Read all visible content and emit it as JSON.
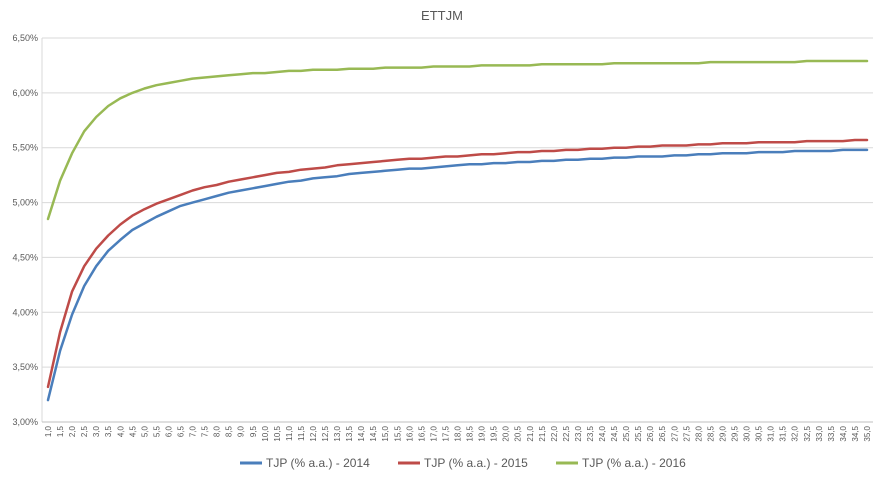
{
  "chart_data": {
    "type": "line",
    "title": "ETTJM",
    "xlabel": "",
    "ylabel": "",
    "ylim": [
      3.0,
      6.5
    ],
    "y_tick_values": [
      3.0,
      3.5,
      4.0,
      4.5,
      5.0,
      5.5,
      6.0,
      6.5
    ],
    "y_tick_labels": [
      "3,00%",
      "3,50%",
      "4,00%",
      "4,50%",
      "5,00%",
      "5,50%",
      "6,00%",
      "6,50%"
    ],
    "x": [
      "1,0",
      "1,5",
      "2,0",
      "2,5",
      "3,0",
      "3,5",
      "4,0",
      "4,5",
      "5,0",
      "5,5",
      "6,0",
      "6,5",
      "7,0",
      "7,5",
      "8,0",
      "8,5",
      "9,0",
      "9,5",
      "10,0",
      "10,5",
      "11,0",
      "11,5",
      "12,0",
      "12,5",
      "13,0",
      "13,5",
      "14,0",
      "14,5",
      "15,0",
      "15,5",
      "16,0",
      "16,5",
      "17,0",
      "17,5",
      "18,0",
      "18,5",
      "19,0",
      "19,5",
      "20,0",
      "20,5",
      "21,0",
      "21,5",
      "22,0",
      "22,5",
      "23,0",
      "23,5",
      "24,0",
      "24,5",
      "25,0",
      "25,5",
      "26,0",
      "26,5",
      "27,0",
      "27,5",
      "28,0",
      "28,5",
      "29,0",
      "29,5",
      "30,0",
      "30,5",
      "31,0",
      "31,5",
      "32,0",
      "32,5",
      "33,0",
      "33,5",
      "34,0",
      "34,5",
      "35,0"
    ],
    "grid": true,
    "legend_position": "bottom",
    "series": [
      {
        "name": "TJP (% a.a.) - 2014",
        "color": "#4a7ebb",
        "values": [
          3.2,
          3.65,
          3.98,
          4.24,
          4.42,
          4.56,
          4.66,
          4.75,
          4.81,
          4.87,
          4.92,
          4.97,
          5.0,
          5.03,
          5.06,
          5.09,
          5.11,
          5.13,
          5.15,
          5.17,
          5.19,
          5.2,
          5.22,
          5.23,
          5.24,
          5.26,
          5.27,
          5.28,
          5.29,
          5.3,
          5.31,
          5.31,
          5.32,
          5.33,
          5.34,
          5.35,
          5.35,
          5.36,
          5.36,
          5.37,
          5.37,
          5.38,
          5.38,
          5.39,
          5.39,
          5.4,
          5.4,
          5.41,
          5.41,
          5.42,
          5.42,
          5.42,
          5.43,
          5.43,
          5.44,
          5.44,
          5.45,
          5.45,
          5.45,
          5.46,
          5.46,
          5.46,
          5.47,
          5.47,
          5.47,
          5.47,
          5.48,
          5.48,
          5.48
        ]
      },
      {
        "name": "TJP (% a.a.) - 2015",
        "color": "#be4b48",
        "values": [
          3.32,
          3.82,
          4.19,
          4.42,
          4.58,
          4.7,
          4.8,
          4.88,
          4.94,
          4.99,
          5.03,
          5.07,
          5.11,
          5.14,
          5.16,
          5.19,
          5.21,
          5.23,
          5.25,
          5.27,
          5.28,
          5.3,
          5.31,
          5.32,
          5.34,
          5.35,
          5.36,
          5.37,
          5.38,
          5.39,
          5.4,
          5.4,
          5.41,
          5.42,
          5.42,
          5.43,
          5.44,
          5.44,
          5.45,
          5.46,
          5.46,
          5.47,
          5.47,
          5.48,
          5.48,
          5.49,
          5.49,
          5.5,
          5.5,
          5.51,
          5.51,
          5.52,
          5.52,
          5.52,
          5.53,
          5.53,
          5.54,
          5.54,
          5.54,
          5.55,
          5.55,
          5.55,
          5.55,
          5.56,
          5.56,
          5.56,
          5.56,
          5.57,
          5.57
        ]
      },
      {
        "name": "TJP (% a.a.) - 2016",
        "color": "#98b954",
        "values": [
          4.85,
          5.2,
          5.45,
          5.65,
          5.78,
          5.88,
          5.95,
          6.0,
          6.04,
          6.07,
          6.09,
          6.11,
          6.13,
          6.14,
          6.15,
          6.16,
          6.17,
          6.18,
          6.18,
          6.19,
          6.2,
          6.2,
          6.21,
          6.21,
          6.21,
          6.22,
          6.22,
          6.22,
          6.23,
          6.23,
          6.23,
          6.23,
          6.24,
          6.24,
          6.24,
          6.24,
          6.25,
          6.25,
          6.25,
          6.25,
          6.25,
          6.26,
          6.26,
          6.26,
          6.26,
          6.26,
          6.26,
          6.27,
          6.27,
          6.27,
          6.27,
          6.27,
          6.27,
          6.27,
          6.27,
          6.28,
          6.28,
          6.28,
          6.28,
          6.28,
          6.28,
          6.28,
          6.28,
          6.29,
          6.29,
          6.29,
          6.29,
          6.29,
          6.29
        ]
      }
    ]
  }
}
